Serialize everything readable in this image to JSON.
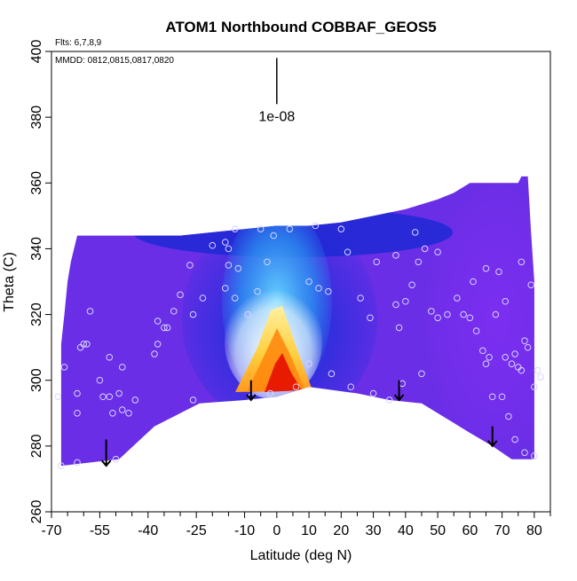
{
  "chart_data": {
    "type": "heatmap",
    "title": "ATOM1 Northbound COBBAF_GEOS5",
    "subtitle_flights": "Flts: 6,7,8,9",
    "subtitle_dates": "MMDD: 0812,0815,0817,0820",
    "xlabel": "Latitude (deg N)",
    "ylabel": "Theta (C)",
    "xlim": [
      -70,
      85
    ],
    "ylim": [
      260,
      400
    ],
    "x_ticks": [
      -70,
      -55,
      -40,
      -25,
      -10,
      0,
      10,
      20,
      30,
      40,
      50,
      60,
      70,
      80
    ],
    "x_minor_ticks": [
      -65,
      -60,
      -50,
      -45,
      -35,
      -30,
      -20,
      -15,
      -5,
      5,
      15,
      25,
      35,
      45,
      55,
      65,
      75,
      85
    ],
    "y_ticks": [
      260,
      280,
      300,
      320,
      340,
      360,
      380,
      400
    ],
    "scale_label": "1e-08",
    "scale_bar": {
      "x": 0,
      "y_bottom": 384,
      "y_top": 398
    },
    "surface_boundary": [
      [
        -67,
        274
      ],
      [
        -49,
        276
      ],
      [
        -38,
        286
      ],
      [
        -28,
        291
      ],
      [
        -24,
        293
      ],
      [
        -10,
        294
      ],
      [
        0,
        295
      ],
      [
        10,
        298
      ],
      [
        25,
        296
      ],
      [
        35,
        294
      ],
      [
        45,
        293
      ],
      [
        60,
        284
      ],
      [
        67,
        280
      ],
      [
        73,
        276
      ],
      [
        80,
        276
      ]
    ],
    "top_boundary": [
      [
        -67,
        311
      ],
      [
        -66,
        320
      ],
      [
        -65,
        330
      ],
      [
        -64,
        336
      ],
      [
        -62,
        344
      ],
      [
        -30,
        344
      ],
      [
        -20,
        345
      ],
      [
        -10,
        346
      ],
      [
        0,
        347
      ],
      [
        10,
        347
      ],
      [
        20,
        348
      ],
      [
        30,
        350
      ],
      [
        40,
        352
      ],
      [
        50,
        355
      ],
      [
        55,
        357
      ],
      [
        60,
        360
      ],
      [
        75,
        360
      ],
      [
        76,
        362
      ],
      [
        78,
        362
      ],
      [
        79,
        345
      ],
      [
        80,
        330
      ],
      [
        80,
        276
      ]
    ],
    "color_scale": [
      "#6a2ee6",
      "#4828dc",
      "#1f2ed6",
      "#0a46e0",
      "#1a8cf0",
      "#5fd0ff",
      "#ffffff",
      "#ffe070",
      "#ff9a1f",
      "#f04800",
      "#d80000"
    ],
    "background_color": "#6a2ee6",
    "core_color": "#d80000",
    "marker_color": "#d8d4ff",
    "arrows": [
      {
        "lat": -53,
        "theta_top": 282,
        "theta_bottom": 274
      },
      {
        "lat": -8,
        "theta_top": 300,
        "theta_bottom": 294
      },
      {
        "lat": 38,
        "theta_top": 300,
        "theta_bottom": 294
      },
      {
        "lat": 67,
        "theta_top": 286,
        "theta_bottom": 280
      }
    ],
    "points": [
      [
        -61,
        310
      ],
      [
        -60,
        311
      ],
      [
        -59,
        311
      ],
      [
        -62,
        296
      ],
      [
        -62,
        290
      ],
      [
        -62,
        275
      ],
      [
        -58,
        321
      ],
      [
        -54,
        295
      ],
      [
        -52,
        295
      ],
      [
        -55,
        300
      ],
      [
        -51,
        290
      ],
      [
        -48,
        291
      ],
      [
        -49,
        296
      ],
      [
        -52,
        307
      ],
      [
        -48,
        304
      ],
      [
        -44,
        294
      ],
      [
        -38,
        308
      ],
      [
        -37,
        311
      ],
      [
        -35,
        316
      ],
      [
        -34,
        316
      ],
      [
        -37,
        318
      ],
      [
        -32,
        321
      ],
      [
        -30,
        326
      ],
      [
        -26,
        320
      ],
      [
        -23,
        325
      ],
      [
        -27,
        335
      ],
      [
        -20,
        341
      ],
      [
        -16,
        342
      ],
      [
        -15,
        340
      ],
      [
        -13,
        346
      ],
      [
        -15,
        335
      ],
      [
        -12,
        334
      ],
      [
        -16,
        328
      ],
      [
        -13,
        325
      ],
      [
        -9,
        320
      ],
      [
        -5,
        346
      ],
      [
        -1,
        344
      ],
      [
        -3,
        336
      ],
      [
        -6,
        327
      ],
      [
        4,
        346
      ],
      [
        10,
        330
      ],
      [
        12,
        347
      ],
      [
        13,
        328
      ],
      [
        16,
        327
      ],
      [
        20,
        346
      ],
      [
        22,
        339
      ],
      [
        26,
        325
      ],
      [
        29,
        319
      ],
      [
        -26,
        294
      ],
      [
        -8,
        295
      ],
      [
        -2,
        296
      ],
      [
        6,
        298
      ],
      [
        10,
        305
      ],
      [
        17,
        302
      ],
      [
        23,
        298
      ],
      [
        30,
        296
      ],
      [
        35,
        294
      ],
      [
        39,
        299
      ],
      [
        45,
        302
      ],
      [
        38,
        316
      ],
      [
        37,
        323
      ],
      [
        40,
        324
      ],
      [
        42,
        329
      ],
      [
        44,
        336
      ],
      [
        46,
        340
      ],
      [
        48,
        321
      ],
      [
        50,
        319
      ],
      [
        53,
        320
      ],
      [
        58,
        320
      ],
      [
        60,
        319
      ],
      [
        62,
        315
      ],
      [
        64,
        309
      ],
      [
        65,
        305
      ],
      [
        66,
        307
      ],
      [
        68,
        320
      ],
      [
        70,
        295
      ],
      [
        71,
        307
      ],
      [
        73,
        305
      ],
      [
        74,
        308
      ],
      [
        75,
        304
      ],
      [
        76,
        303
      ],
      [
        77,
        312
      ],
      [
        78,
        310
      ],
      [
        80,
        298
      ],
      [
        67,
        295
      ],
      [
        72,
        289
      ],
      [
        74,
        282
      ],
      [
        77,
        278
      ],
      [
        80,
        277
      ],
      [
        82,
        301
      ],
      [
        -68,
        295
      ],
      [
        -66,
        304
      ],
      [
        -67,
        274
      ],
      [
        -50,
        276
      ],
      [
        -46,
        290
      ],
      [
        31,
        336
      ],
      [
        37,
        338
      ],
      [
        43,
        345
      ],
      [
        50,
        339
      ],
      [
        56,
        325
      ],
      [
        61,
        330
      ],
      [
        65,
        334
      ],
      [
        69,
        333
      ],
      [
        76,
        336
      ],
      [
        79,
        329
      ],
      [
        81,
        303
      ],
      [
        71,
        324
      ]
    ],
    "grid": false,
    "legend": "none"
  }
}
